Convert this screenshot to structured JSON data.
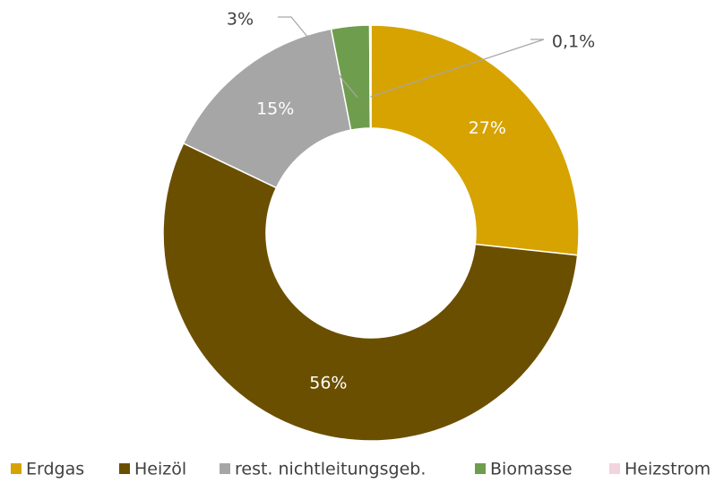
{
  "chart_data": {
    "type": "donut",
    "categories": [
      "Erdgas",
      "Heizöl",
      "rest. nichtleitungsgeb.",
      "Biomasse",
      "Heizstrom"
    ],
    "values": [
      27,
      56,
      15,
      3,
      0.1
    ],
    "value_labels": [
      "27%",
      "56%",
      "15%",
      "3%",
      "0,1%"
    ],
    "colors": [
      "#d6a300",
      "#6b4f00",
      "#a6a6a6",
      "#6f9d4e",
      "#f2d3de"
    ],
    "legend": "bottom"
  }
}
